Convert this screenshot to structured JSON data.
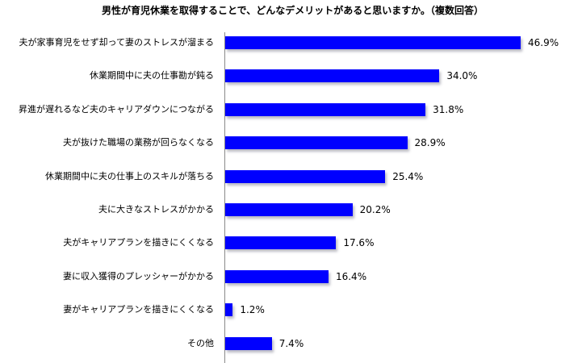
{
  "title": "男性が育児休業を取得することで、どんなデメリットがあると思いますか。（複数回答）",
  "colors": {
    "bar": "#0000ff",
    "axis": "#8a8a8a",
    "background": "#ffffff"
  },
  "chart_data": {
    "type": "bar",
    "orientation": "horizontal",
    "title": "男性が育児休業を取得することで、どんなデメリットがあると思いますか。（複数回答）",
    "xlabel": "",
    "ylabel": "",
    "grid": false,
    "legend": null,
    "unit": "%",
    "categories": [
      "夫が家事育児をせず却って妻のストレスが溜まる",
      "休業期間中に夫の仕事勘が鈍る",
      "昇進が遅れるなど夫のキャリアダウンにつながる",
      "夫が抜けた職場の業務が回らなくなる",
      "休業期間中に夫の仕事上のスキルが落ちる",
      "夫に大きなストレスがかかる",
      "夫がキャリアプランを描きにくくなる",
      "妻に収入獲得のプレッシャーがかかる",
      "妻がキャリアプランを描きにくくなる",
      "その他"
    ],
    "values": [
      46.9,
      34.0,
      31.8,
      28.9,
      25.4,
      20.2,
      17.6,
      16.4,
      1.2,
      7.4
    ],
    "value_labels": [
      "46.9%",
      "34.0%",
      "31.8%",
      "28.9%",
      "25.4%",
      "20.2%",
      "17.6%",
      "16.4%",
      "1.2%",
      "7.4%"
    ]
  }
}
